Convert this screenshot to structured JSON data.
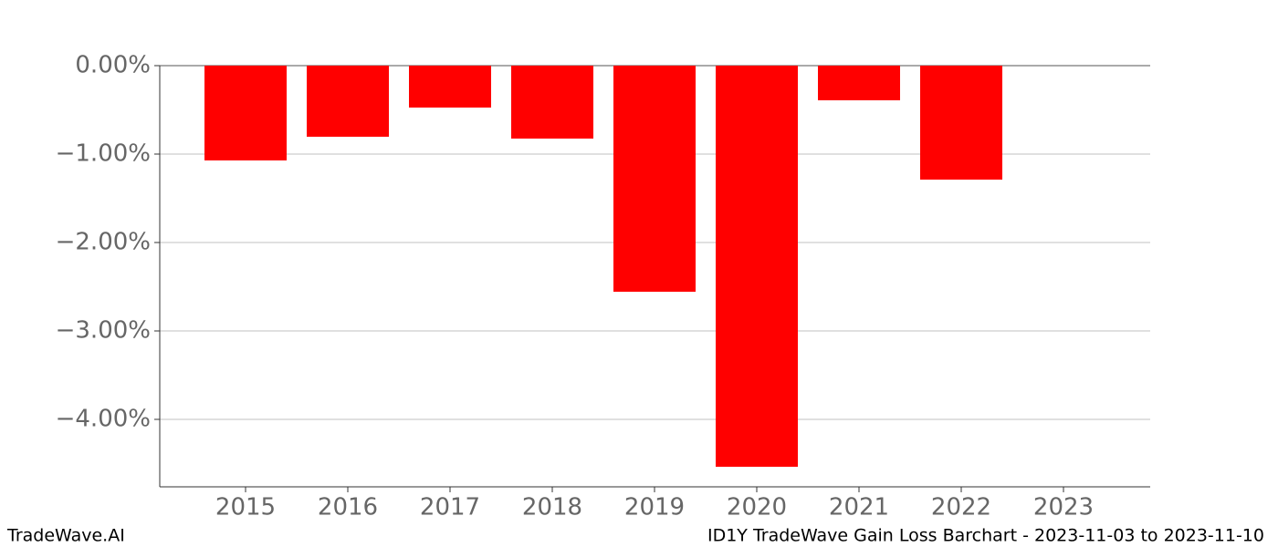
{
  "chart_data": {
    "type": "bar",
    "title": "ID1Y TradeWave Gain Loss Barchart - 2023-11-03 to 2023-11-10",
    "watermark": "TradeWave.AI",
    "categories": [
      "2015",
      "2016",
      "2017",
      "2018",
      "2019",
      "2020",
      "2021",
      "2022",
      "2023"
    ],
    "values": [
      -1.072,
      -0.804,
      -0.474,
      -0.825,
      -2.557,
      -4.536,
      -0.392,
      -1.289,
      null
    ],
    "color": "#ff0000",
    "ylim": [
      -4.763,
      0
    ],
    "yticks": [
      {
        "value": 0,
        "label": "0.00%"
      },
      {
        "value": -1,
        "label": "−1.00%"
      },
      {
        "value": -2,
        "label": "−2.00%"
      },
      {
        "value": -3,
        "label": "−3.00%"
      },
      {
        "value": -4,
        "label": "−4.00%"
      }
    ],
    "grid": true
  }
}
